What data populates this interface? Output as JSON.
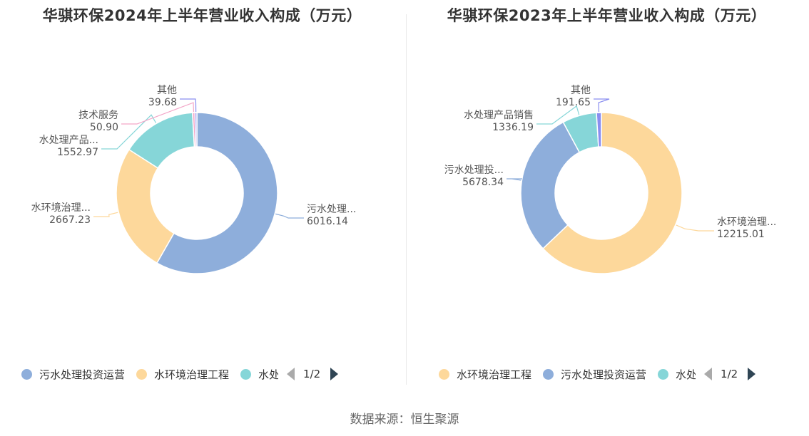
{
  "chart_data": [
    {
      "type": "pie",
      "donut": true,
      "title": "华骐环保2024年上半年营业收入构成（万元）",
      "series": [
        {
          "name": "污水处理投资运营",
          "label": "污水处理...",
          "value": 6016.14,
          "value_label": "6016.14",
          "color": "#8eaedb"
        },
        {
          "name": "水环境治理工程",
          "label": "水环境治理...",
          "value": 2667.23,
          "value_label": "2667.23",
          "color": "#fdd89b"
        },
        {
          "name": "水处理产品销售",
          "label": "水处理产品...",
          "value": 1552.97,
          "value_label": "1552.97",
          "color": "#86d6d8"
        },
        {
          "name": "技术服务",
          "label": "技术服务",
          "value": 50.9,
          "value_label": "50.90",
          "color": "#f3a6c8"
        },
        {
          "name": "其他",
          "label": "其他",
          "value": 39.68,
          "value_label": "39.68",
          "color": "#8a8ef0"
        }
      ],
      "legend": {
        "placement": "bottom",
        "visible_items": [
          "污水处理投资运营",
          "水环境治理工程",
          "水处"
        ],
        "page": "1/2"
      }
    },
    {
      "type": "pie",
      "donut": true,
      "title": "华骐环保2023年上半年营业收入构成（万元）",
      "series": [
        {
          "name": "水环境治理工程",
          "label": "水环境治理...",
          "value": 12215.01,
          "value_label": "12215.01",
          "color": "#fdd89b"
        },
        {
          "name": "污水处理投资运营",
          "label": "污水处理投...",
          "value": 5678.34,
          "value_label": "5678.34",
          "color": "#8eaedb"
        },
        {
          "name": "水处理产品销售",
          "label": "水处理产品销售",
          "value": 1336.19,
          "value_label": "1336.19",
          "color": "#86d6d8"
        },
        {
          "name": "其他",
          "label": "其他",
          "value": 191.65,
          "value_label": "191.65",
          "color": "#8a8ef0"
        }
      ],
      "legend": {
        "placement": "bottom",
        "visible_items": [
          "水环境治理工程",
          "污水处理投资运营",
          "水处"
        ],
        "page": "1/2"
      }
    }
  ],
  "source": "数据来源：恒生聚源"
}
